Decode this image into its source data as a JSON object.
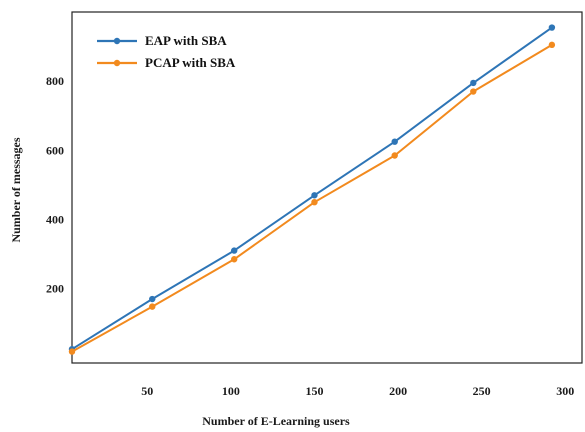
{
  "chart_data": {
    "type": "line",
    "xlabel": "Number of E-Learning users",
    "ylabel": "Number of messages",
    "xlim": [
      5,
      310
    ],
    "ylim": [
      -15,
      1000
    ],
    "xticks": [
      50,
      100,
      150,
      200,
      250,
      300
    ],
    "xtick_labels": [
      "50",
      "100",
      "150",
      "200",
      "250",
      "300"
    ],
    "yticks": [
      200,
      400,
      600,
      800
    ],
    "ytick_labels": [
      "200",
      "400",
      "600",
      "800"
    ],
    "grid": false,
    "legend_position": "top-left",
    "series": [
      {
        "name": "EAP with SBA",
        "color": "#2e75b6",
        "x": [
          5,
          53,
          102,
          150,
          198,
          245,
          292
        ],
        "y": [
          25,
          170,
          310,
          470,
          625,
          795,
          955
        ]
      },
      {
        "name": "PCAP with SBA",
        "color": "#f28a1e",
        "x": [
          5,
          53,
          102,
          150,
          198,
          245,
          292
        ],
        "y": [
          18,
          148,
          285,
          450,
          585,
          770,
          905
        ]
      }
    ]
  }
}
